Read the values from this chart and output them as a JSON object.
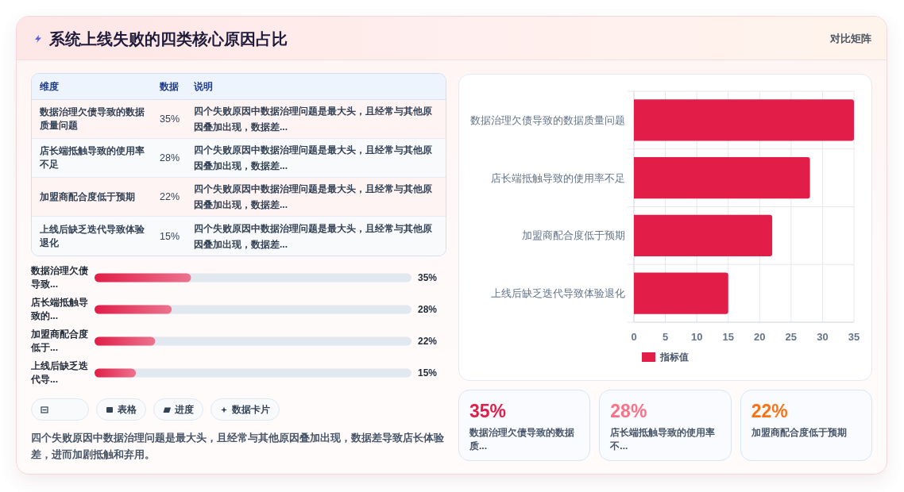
{
  "chart_data": [
    {
      "type": "other",
      "title": "系统上线失败的四类核心原因占比",
      "subtitle": "对比矩阵"
    },
    {
      "type": "other",
      "ylabel": "维度",
      "xlabel": "数据",
      "categories": [
        "数据治理欠债导致的数据质量问题",
        "店长端抵触导致的使用率不足",
        "加盟商配合度低于预期",
        "上线后缺乏迭代导致体验退化"
      ],
      "value_labels": [
        "35%",
        "28%",
        "22%",
        "15%"
      ],
      "annotations": [
        "说明",
        "四个失败原因中数据治理问题是最大头，且经常与其他原因叠加出现，数据差...",
        "四个失败原因中数据治理问题是最大头，且经常与其他原因叠加出现，数据差...",
        "四个失败原因中数据治理问题是最大头，且经常与其他原因叠加出现，数据差...",
        "四个失败原因中数据治理问题是最大头，且经常与其他原因叠加出现，数据差..."
      ]
    },
    {
      "type": "bar",
      "orientation": "horizontal",
      "categories": [
        "数据治理欠债导致...",
        "店长端抵触导致的...",
        "加盟商配合度低于...",
        "上线后缺乏迭代导..."
      ],
      "values": [
        35,
        28,
        22,
        15
      ],
      "value_labels": [
        "35%",
        "28%",
        "22%",
        "15%"
      ],
      "color": "#e11d48",
      "xlim": [
        0,
        115
      ],
      "tick_labels": "y"
    },
    {
      "type": "other",
      "annotations": [
        "表格",
        "进度",
        "数据卡片",
        "四个失败原因中数据治理问题是最大头，且经常与其他原因叠加出现，数据差导致店长体验差，进而加剧抵触和弃用。"
      ]
    },
    {
      "type": "bar",
      "orientation": "horizontal",
      "categories": [
        "数据治理欠债导致的数据质量问题",
        "店长端抵触导致的使用率不足",
        "加盟商配合度低于预期",
        "上线后缺乏迭代导致体验退化"
      ],
      "series": [
        {
          "name": "指标值",
          "color": "#e11d48",
          "values": [
            35,
            28,
            22,
            15
          ]
        }
      ],
      "xlim": [
        0,
        35
      ],
      "xticks": [
        0,
        5,
        10,
        15,
        20,
        25,
        30,
        35
      ],
      "grid": true,
      "legend": "bottom left"
    },
    {
      "type": "other",
      "categories": [
        "数据治理欠债导致的数据质...",
        "店长端抵触导致的使用率不...",
        "加盟商配合度低于预期"
      ],
      "value_labels": [
        "35%",
        "28%",
        "22%"
      ]
    }
  ]
}
